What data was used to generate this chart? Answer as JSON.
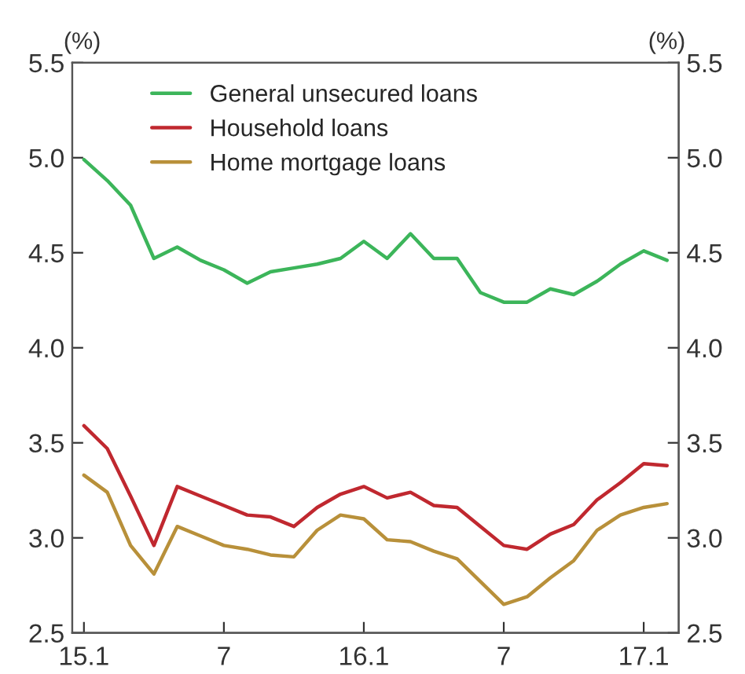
{
  "chart_data": {
    "type": "line",
    "categories": [
      "15.1",
      null,
      null,
      null,
      null,
      null,
      "7",
      null,
      null,
      null,
      null,
      null,
      "16.1",
      null,
      null,
      null,
      null,
      null,
      "7",
      null,
      null,
      null,
      null,
      null,
      "17.1",
      null
    ],
    "series": [
      {
        "name": "General unsecured loans",
        "color": "#3cb55a",
        "values": [
          4.99,
          4.88,
          4.75,
          4.47,
          4.53,
          4.46,
          4.41,
          4.34,
          4.4,
          4.42,
          4.44,
          4.47,
          4.56,
          4.47,
          4.6,
          4.47,
          4.47,
          4.29,
          4.24,
          4.24,
          4.31,
          4.28,
          4.35,
          4.44,
          4.51,
          4.46
        ]
      },
      {
        "name": "Household loans",
        "color": "#c0282f",
        "values": [
          3.59,
          3.47,
          3.22,
          2.96,
          3.27,
          3.22,
          3.17,
          3.12,
          3.11,
          3.06,
          3.16,
          3.23,
          3.27,
          3.21,
          3.24,
          3.17,
          3.16,
          3.06,
          2.96,
          2.94,
          3.02,
          3.07,
          3.2,
          3.29,
          3.39,
          3.38
        ]
      },
      {
        "name": "Home mortgage loans",
        "color": "#b8903a",
        "values": [
          3.33,
          3.24,
          2.96,
          2.81,
          3.06,
          3.01,
          2.96,
          2.94,
          2.91,
          2.9,
          3.04,
          3.12,
          3.1,
          2.99,
          2.98,
          2.93,
          2.89,
          2.77,
          2.65,
          2.69,
          2.79,
          2.88,
          3.04,
          3.12,
          3.16,
          3.18
        ]
      }
    ],
    "ylabel": "(%)",
    "y2label": "(%)",
    "ylim": [
      2.5,
      5.5
    ],
    "yticks": [
      2.5,
      {
        "value": 3,
        "label": "3.0"
      },
      3.5,
      {
        "value": 4,
        "label": "4.0"
      },
      4.5,
      {
        "value": 5,
        "label": "5.0"
      },
      5.5
    ],
    "y2lim": [
      2.5,
      5.5
    ],
    "y2ticks": [
      2.5,
      {
        "value": 3,
        "label": "3.0"
      },
      3.5,
      {
        "value": 4,
        "label": "4.0"
      },
      4.5,
      {
        "value": 5,
        "label": "5.0"
      },
      5.5
    ],
    "grid": false,
    "legend": "top",
    "marker": "none",
    "line_style": "solid"
  }
}
